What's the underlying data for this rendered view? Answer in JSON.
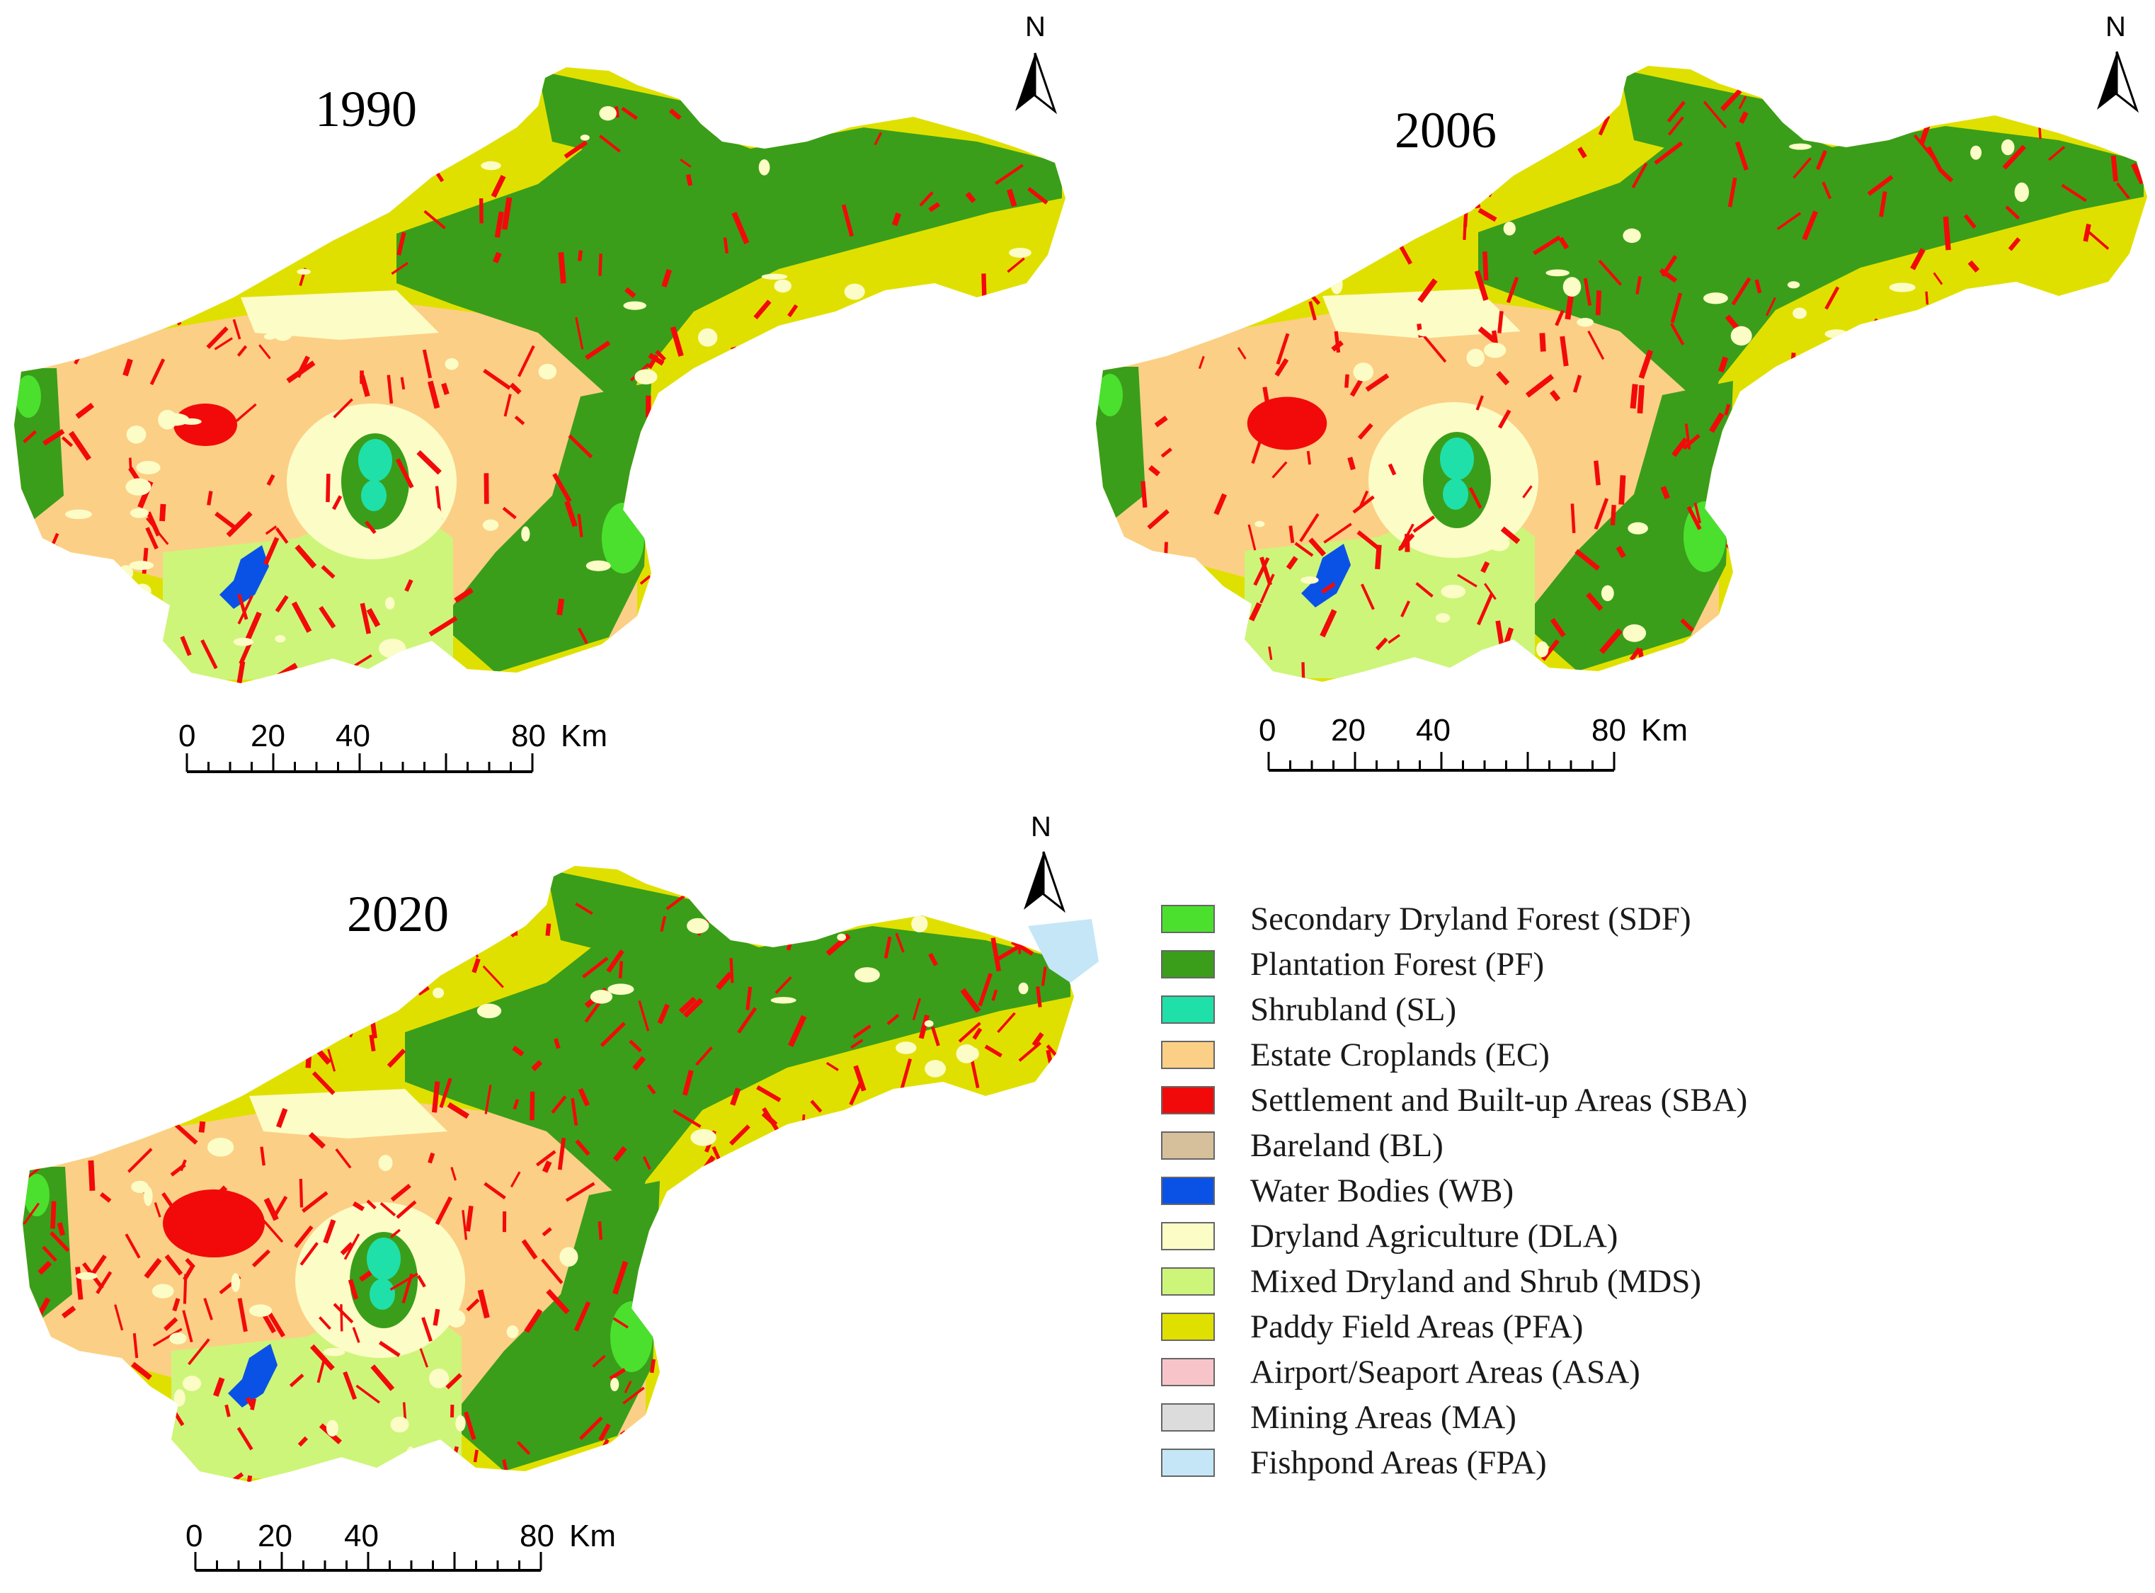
{
  "colors": {
    "SDF": "#4be02e",
    "PF": "#3a9e1a",
    "SL": "#1fe0a8",
    "EC": "#fccf86",
    "SBA": "#f20a0a",
    "BL": "#d6bf9b",
    "WB": "#0a52e6",
    "DLA": "#fcfcc6",
    "MDS": "#cdf57a",
    "PFA": "#e0e000",
    "ASA": "#f7c5c9",
    "MA": "#dcdcdc",
    "FPA": "#c5e6f7"
  },
  "maps": [
    {
      "year": "1990",
      "north_label": "N",
      "scale": {
        "ticks": [
          "0",
          "20",
          "40",
          "80"
        ],
        "unit": "Km"
      }
    },
    {
      "year": "2006",
      "north_label": "N",
      "scale": {
        "ticks": [
          "0",
          "20",
          "40",
          "80"
        ],
        "unit": "Km"
      }
    },
    {
      "year": "2020",
      "north_label": "N",
      "scale": {
        "ticks": [
          "0",
          "20",
          "40",
          "80"
        ],
        "unit": "Km"
      }
    }
  ],
  "legend": [
    {
      "code": "SDF",
      "label": "Secondary Dryland Forest (SDF)"
    },
    {
      "code": "PF",
      "label": "Plantation Forest (PF)"
    },
    {
      "code": "SL",
      "label": "Shrubland (SL)"
    },
    {
      "code": "EC",
      "label": "Estate Croplands (EC)"
    },
    {
      "code": "SBA",
      "label": "Settlement and Built-up Areas (SBA)"
    },
    {
      "code": "BL",
      "label": "Bareland (BL)"
    },
    {
      "code": "WB",
      "label": "Water Bodies (WB)"
    },
    {
      "code": "DLA",
      "label": "Dryland Agriculture (DLA)"
    },
    {
      "code": "MDS",
      "label": "Mixed Dryland and Shrub (MDS)"
    },
    {
      "code": "PFA",
      "label": "Paddy Field Areas (PFA)"
    },
    {
      "code": "ASA",
      "label": "Airport/Seaport Areas (ASA)"
    },
    {
      "code": "MA",
      "label": "Mining Areas (MA)"
    },
    {
      "code": "FPA",
      "label": "Fishpond Areas (FPA)"
    }
  ]
}
